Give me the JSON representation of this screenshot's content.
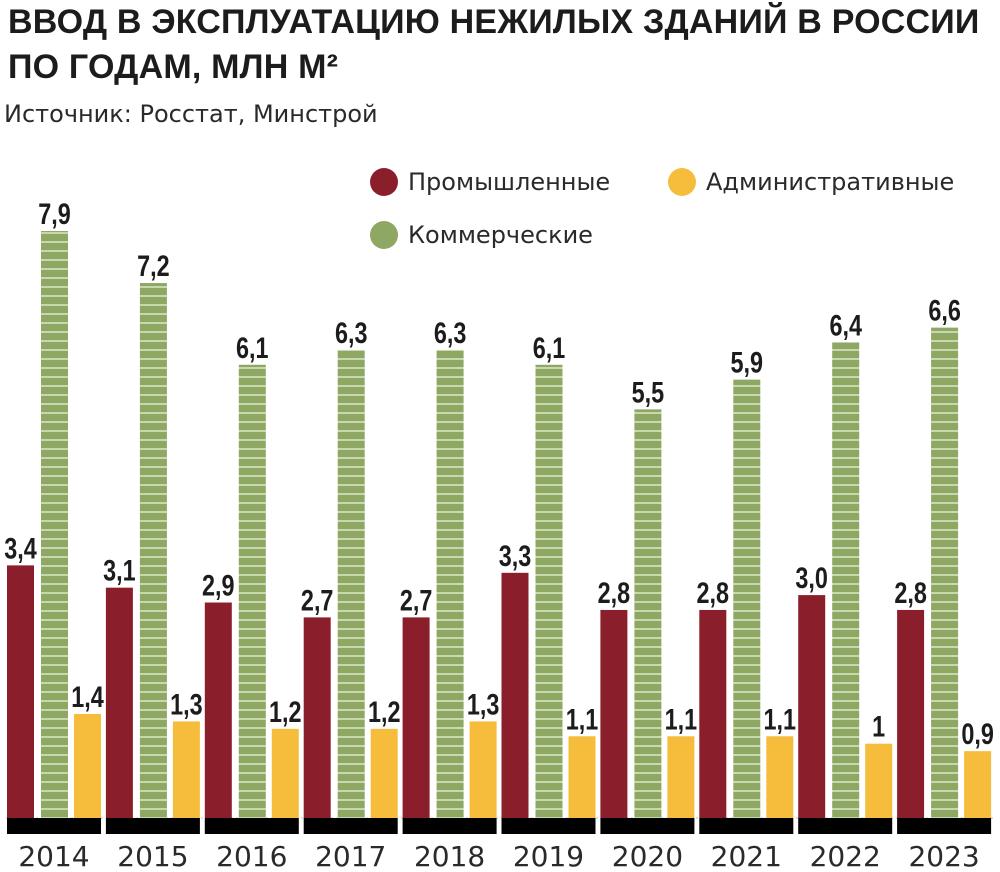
{
  "title": "ВВОД В ЭКСПЛУАТАЦИЮ НЕЖИЛЫХ ЗДАНИЙ В РОССИИ ПО ГОДАМ, МЛН М²",
  "source": "Источник: Росстат, Минстрой",
  "legend": {
    "industrial": "Промышленные",
    "administrative": "Административные",
    "commercial": "Коммерческие"
  },
  "colors": {
    "industrial": "#8b1e2b",
    "commercial": "#8ea863",
    "administrative": "#f6bd3c",
    "axis": "#000000",
    "text": "#1c1c1c"
  },
  "chart_data": {
    "type": "bar",
    "categories": [
      "2014",
      "2015",
      "2016",
      "2017",
      "2018",
      "2019",
      "2020",
      "2021",
      "2022",
      "2023"
    ],
    "series": [
      {
        "name": "Промышленные",
        "key": "industrial",
        "values": [
          3.4,
          3.1,
          2.9,
          2.7,
          2.7,
          3.3,
          2.8,
          2.8,
          3.0,
          2.8
        ],
        "labels": [
          "3,4",
          "3,1",
          "2,9",
          "2,7",
          "2,7",
          "3,3",
          "2,8",
          "2,8",
          "3,0",
          "2,8"
        ]
      },
      {
        "name": "Коммерческие",
        "key": "commercial",
        "values": [
          7.9,
          7.2,
          6.1,
          6.3,
          6.3,
          6.1,
          5.5,
          5.9,
          6.4,
          6.6
        ],
        "labels": [
          "7,9",
          "7,2",
          "6,1",
          "6,3",
          "6,3",
          "6,1",
          "5,5",
          "5,9",
          "6,4",
          "6,6"
        ]
      },
      {
        "name": "Административные",
        "key": "administrative",
        "values": [
          1.4,
          1.3,
          1.2,
          1.2,
          1.3,
          1.1,
          1.1,
          1.1,
          1.0,
          0.9
        ],
        "labels": [
          "1,4",
          "1,3",
          "1,2",
          "1,2",
          "1,3",
          "1,1",
          "1,1",
          "1,1",
          "1",
          "0,9"
        ]
      }
    ],
    "ylim": [
      0,
      8
    ],
    "grid": false,
    "legend_position": "top-right"
  }
}
